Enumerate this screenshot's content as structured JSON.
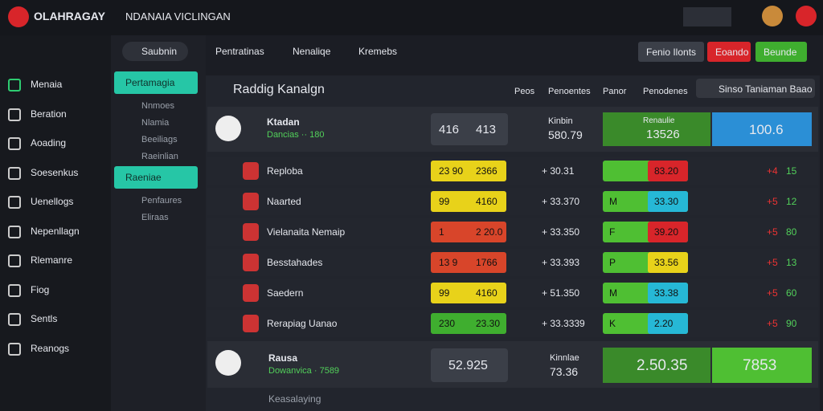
{
  "header": {
    "brand": "OLAHRAGAY",
    "title": "NDANAIA VICLINGAN"
  },
  "top_tabs": [
    "Saubnin",
    "Pentratinas",
    "Nenaliqe",
    "Kremebs"
  ],
  "top_buttons": [
    "Fenio Ilonts",
    "Eoando",
    "Beunde"
  ],
  "sidebar": [
    "Menaia",
    "Beration",
    "Aoading",
    "Soesenkus",
    "Uenellogs",
    "Nepenllagn",
    "Rlemanre",
    "Fiog",
    "Sentls",
    "Reanogs"
  ],
  "subpanel": {
    "title": "Pertamagia",
    "items": [
      "Nnmoes",
      "Nlamia",
      "Beeiliags",
      "Raeinlian"
    ],
    "active": "Raeniae",
    "more": [
      "Penfaures",
      "Eliraas"
    ]
  },
  "main": {
    "title": "Raddig Kanalgn",
    "columns": [
      "Peos",
      "Penoentes",
      "Panor",
      "Penodenes"
    ],
    "action": "Sinso Taniaman Baao"
  },
  "featured": {
    "team": "Ktadan",
    "sub": "Dancias ·· 180",
    "odds": [
      "416",
      "413"
    ],
    "label": "Kinbin",
    "price": "580.79",
    "best_label": "Renaulie",
    "best": "13526",
    "total": "100.6"
  },
  "rows": [
    {
      "name": "Reploba",
      "odds_a": "23 90",
      "odds_b": "2366",
      "price": "+ 30.31",
      "mark": "",
      "odds_c": "83.20",
      "change": "+4",
      "count": "15"
    },
    {
      "name": "Naarted",
      "odds_a": "99",
      "odds_b": "4160",
      "price": "+ 33.370",
      "mark": "M",
      "odds_c": "33.30",
      "change": "+5",
      "count": "12"
    },
    {
      "name": "Vielanaita Nemaip",
      "odds_a": "1",
      "odds_b": "2 20.0",
      "price": "+ 33.350",
      "mark": "F",
      "odds_c": "39.20",
      "change": "+5",
      "count": "80"
    },
    {
      "name": "Besstahades",
      "odds_a": "13 9",
      "odds_b": "1766",
      "price": "+ 33.393",
      "mark": "P",
      "odds_c": "33.56",
      "change": "+5",
      "count": "13"
    },
    {
      "name": "Saedern",
      "odds_a": "99",
      "odds_b": "4160",
      "price": "+ 51.350",
      "mark": "M",
      "odds_c": "33.38",
      "change": "+5",
      "count": "60"
    },
    {
      "name": "Rerapiag Uanao",
      "odds_a": "230",
      "odds_b": "23.30",
      "price": "+ 33.3339",
      "mark": "K",
      "odds_c": "2.20",
      "change": "+5",
      "count": "90"
    }
  ],
  "bottom": {
    "team": "Rausa",
    "sub": "Dowanvica · 7589",
    "odds": "52.925",
    "label": "Kinnlae",
    "price": "73.36",
    "best": "2.50.35",
    "total": "7853",
    "next": "Keasalaying"
  }
}
